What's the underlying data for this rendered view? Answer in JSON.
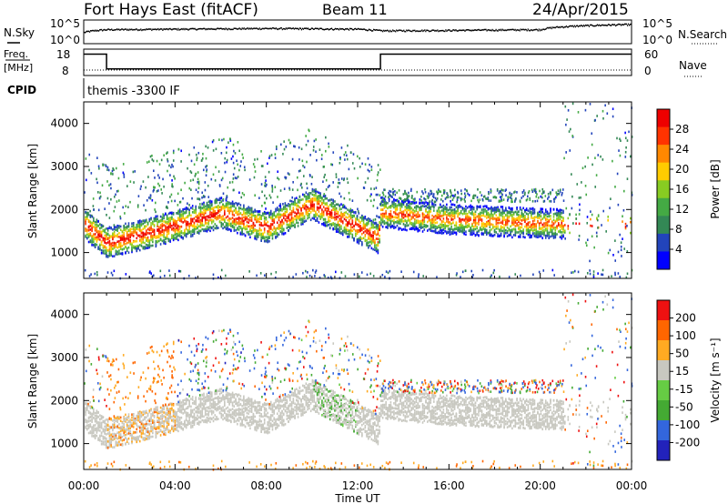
{
  "header": {
    "station": "Fort Hays East (fitACF)",
    "beam": "Beam 11",
    "date": "24/Apr/2015"
  },
  "noise_panel": {
    "left_label": "N.Sky",
    "right_label": "N.Search",
    "tick_top": "10^5",
    "tick_bottom": "10^0"
  },
  "freq_panel": {
    "left_label_1": "Freq.",
    "left_label_2": "[MHz]",
    "left_ticks": [
      "18",
      "8"
    ],
    "right_label": "Nave",
    "right_ticks": [
      "60",
      "0"
    ]
  },
  "cpid_panel": {
    "label": "CPID",
    "text": "themis -3300 IF"
  },
  "xaxis": {
    "label": "Time UT",
    "ticks": [
      "00:00",
      "04:00",
      "08:00",
      "12:00",
      "16:00",
      "20:00",
      "00:00"
    ]
  },
  "colors": {
    "power": [
      "#0000ff",
      "#2244bb",
      "#338855",
      "#44aa44",
      "#88cc22",
      "#ffcc00",
      "#ff8800",
      "#ff3300",
      "#ee0000"
    ],
    "velocity": [
      "#2222bb",
      "#3366dd",
      "#44aa33",
      "#66cc44",
      "#c8c8c0",
      "#ffaa22",
      "#ff6600",
      "#ee1111"
    ]
  },
  "chart_data": [
    {
      "type": "line",
      "panel": "noise",
      "ylabel": "N.Sky",
      "yscale": "log",
      "x_hours": [
        0,
        1,
        4,
        8,
        12,
        13,
        16,
        20,
        21,
        24
      ],
      "series": [
        {
          "name": "N.Sky",
          "values": [
            300,
            1500,
            2000,
            3000,
            2000,
            800,
            1000,
            1500,
            8000,
            30000
          ]
        }
      ]
    },
    {
      "type": "line",
      "panel": "frequency",
      "ylabel": "Freq. [MHz]",
      "ylim": [
        8,
        18
      ],
      "x_hours": [
        0,
        1,
        1,
        13,
        13,
        24
      ],
      "series": [
        {
          "name": "Freq.",
          "values": [
            17,
            17,
            10.5,
            10.5,
            17,
            17
          ]
        },
        {
          "name": "Nave",
          "values": [
            10,
            10,
            10,
            10,
            10,
            10
          ]
        }
      ]
    },
    {
      "type": "heatmap",
      "panel": "power",
      "ylabel": "Slant Range [km]",
      "xlabel": "Time UT",
      "xlim": [
        0,
        24
      ],
      "ylim": [
        400,
        4500
      ],
      "yticks": [
        1000,
        2000,
        3000,
        4000
      ],
      "colorbar": {
        "label": "Power [dB]",
        "ticks": [
          4,
          8,
          12,
          16,
          20,
          24,
          28
        ],
        "range": [
          0,
          30
        ]
      },
      "band_center_km": {
        "x_hours": [
          0,
          1,
          3,
          6,
          8,
          10,
          12.9,
          13,
          16,
          20,
          24
        ],
        "values": [
          1700,
          1250,
          1500,
          1950,
          1600,
          2150,
          1350,
          1950,
          1800,
          1700,
          1650
        ]
      },
      "band_width_km": 500
    },
    {
      "type": "heatmap",
      "panel": "velocity",
      "ylabel": "Slant Range [km]",
      "xlabel": "Time UT",
      "xlim": [
        0,
        24
      ],
      "ylim": [
        400,
        4500
      ],
      "yticks": [
        1000,
        2000,
        3000,
        4000
      ],
      "colorbar": {
        "label": "Velocity [m s^-1]",
        "ticks": [
          200,
          100,
          50,
          15,
          -15,
          -50,
          -100,
          -200
        ],
        "range": [
          -250,
          250
        ]
      }
    }
  ]
}
